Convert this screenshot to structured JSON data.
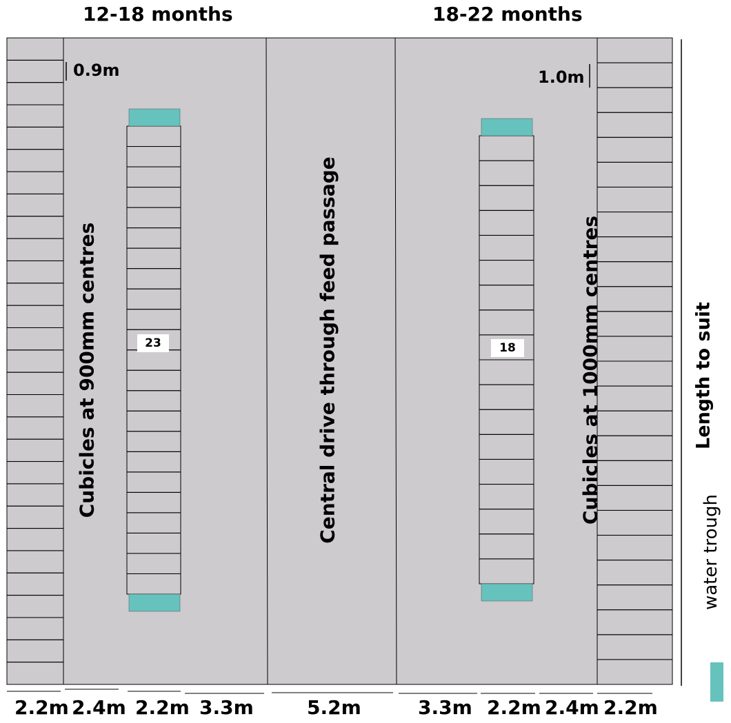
{
  "titles": {
    "left": "12-18 months",
    "right": "18-22 months"
  },
  "labels": {
    "left_cubicles": "Cubicles at 900mm centres",
    "central": "Central drive through feed passage",
    "right_cubicles": "Cubicles at 1000mm centres",
    "length": "Length to suit",
    "legend": "water trough"
  },
  "markers": {
    "left_spacing": "0.9m",
    "right_spacing": "1.0m"
  },
  "cubicle_counts": {
    "left": "23",
    "right": "18"
  },
  "dimensions": [
    "2.2m",
    "2.4m",
    "2.2m",
    "3.3m",
    "5.2m",
    "3.3m",
    "2.2m",
    "2.4m",
    "2.2m"
  ],
  "colors": {
    "floor": "#cdcbce",
    "trough": "#66c2bc",
    "line": "#000000"
  }
}
